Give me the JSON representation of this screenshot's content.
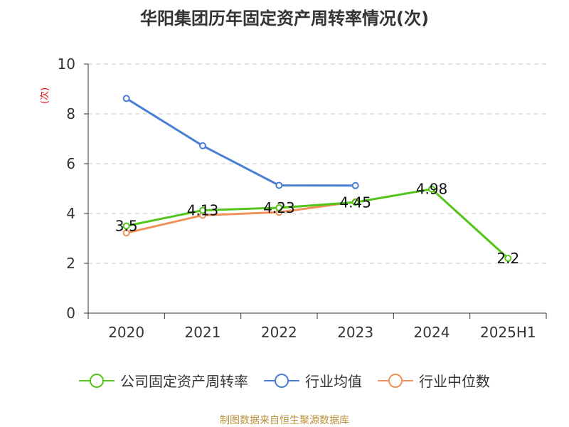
{
  "title": "华阳集团历年固定资产周转率情况(次)",
  "source_note": "制图数据来自恒生聚源数据库",
  "chart_data": {
    "type": "line",
    "title": "华阳集团历年固定资产周转率情况(次)",
    "ylabel": "(次)",
    "xlabel": "",
    "categories": [
      "2020",
      "2021",
      "2022",
      "2023",
      "2024",
      "2025H1"
    ],
    "ylim": [
      0,
      10
    ],
    "yticks": [
      0,
      2,
      4,
      6,
      8,
      10
    ],
    "grid": true,
    "legend": "bottom",
    "series": [
      {
        "name": "公司固定资产周转率",
        "color": "#52c41a",
        "values": [
          3.5,
          4.13,
          4.23,
          4.45,
          4.98,
          2.2
        ],
        "labels": [
          "3.5",
          "4.13",
          "4.23",
          "4.45",
          "4.98",
          "2.2"
        ]
      },
      {
        "name": "行业均值",
        "color": "#4a7fd4",
        "values": [
          8.62,
          6.72,
          5.13,
          5.12,
          null,
          null
        ]
      },
      {
        "name": "行业中位数",
        "color": "#f0915a",
        "values": [
          3.22,
          3.93,
          4.05,
          4.47,
          null,
          null
        ]
      }
    ]
  }
}
